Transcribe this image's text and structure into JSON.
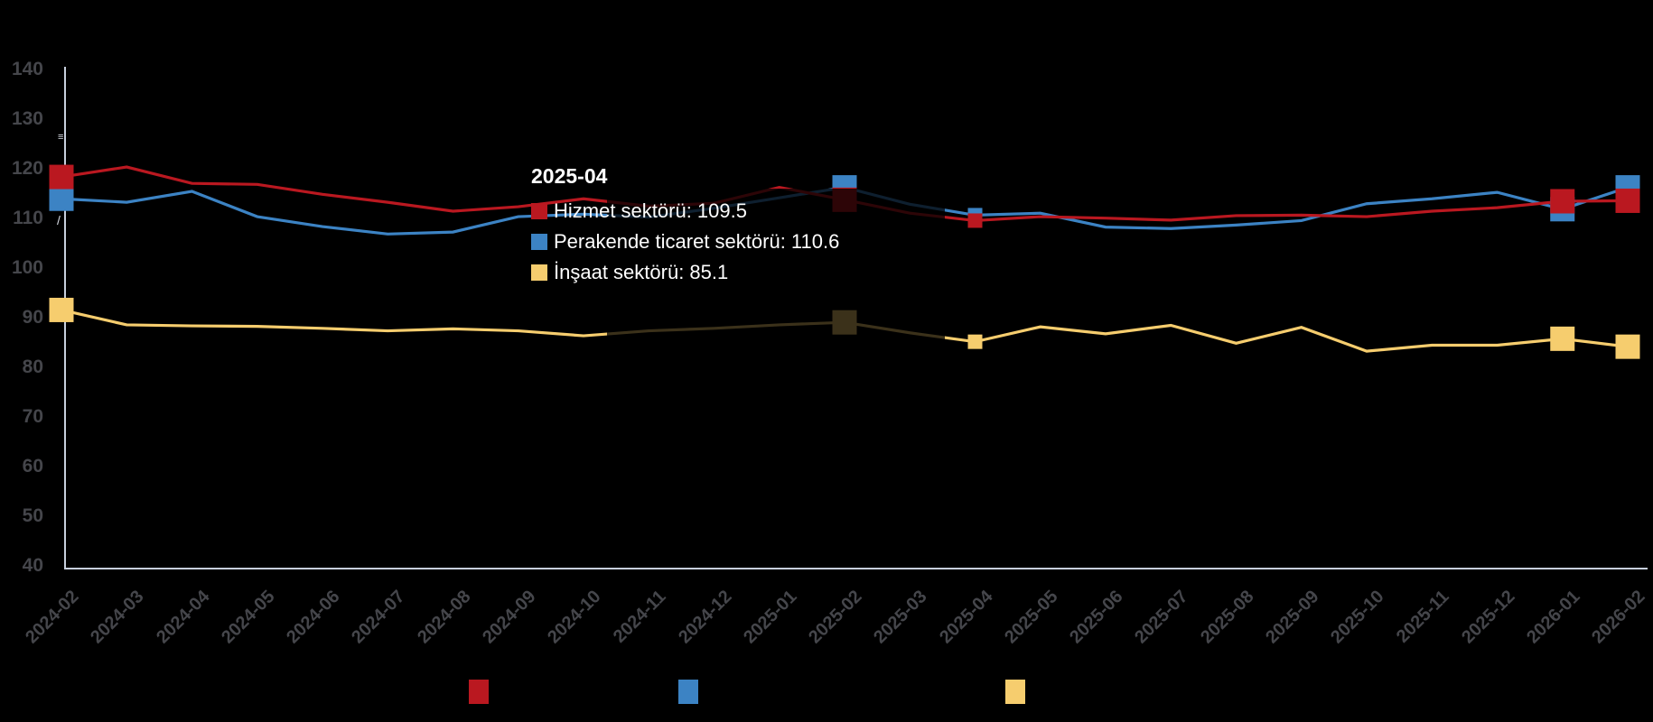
{
  "chart_data": {
    "type": "line",
    "title": "",
    "xlabel": "",
    "ylabel": "",
    "ylim": [
      40,
      140
    ],
    "yticks": [
      140,
      130,
      120,
      110,
      100,
      90,
      80,
      70,
      60,
      50,
      40
    ],
    "grid": false,
    "legend_position": "bottom",
    "background": "#000000",
    "axis_color": "#c7cfdd",
    "tick_label_color": "#45464b",
    "x": [
      "2024-02",
      "2024-03",
      "2024-04",
      "2024-05",
      "2024-06",
      "2024-07",
      "2024-08",
      "2024-09",
      "2024-10",
      "2024-11",
      "2024-12",
      "2025-01",
      "2025-02",
      "2025-03",
      "2025-04",
      "2025-05",
      "2025-06",
      "2025-07",
      "2025-08",
      "2025-09",
      "2025-10",
      "2025-11",
      "2025-12",
      "2026-01",
      "2026-02"
    ],
    "series": [
      {
        "name": "Hizmet sektörü",
        "color": "#ba1820",
        "values": [
          118.3,
          120.3,
          117.0,
          116.8,
          114.8,
          113.2,
          111.4,
          112.3,
          113.9,
          112.4,
          113.0,
          116.2,
          113.7,
          111.0,
          109.5,
          110.3,
          110.0,
          109.6,
          110.5,
          110.6,
          110.3,
          111.4,
          112.1,
          113.4,
          113.5
        ]
      },
      {
        "name": "Perakende ticaret sektörü",
        "color": "#3c83c4",
        "values": [
          113.9,
          113.2,
          115.4,
          110.3,
          108.3,
          106.8,
          107.2,
          110.3,
          110.8,
          110.2,
          112.0,
          114.1,
          116.2,
          112.8,
          110.6,
          111.0,
          108.2,
          107.9,
          108.6,
          109.5,
          112.9,
          113.9,
          115.2,
          111.8,
          116.2
        ]
      },
      {
        "name": "İnşaat sektörü",
        "color": "#f6cd6e",
        "values": [
          91.5,
          88.5,
          88.3,
          88.2,
          87.8,
          87.3,
          87.7,
          87.3,
          86.3,
          87.3,
          87.8,
          88.5,
          89.0,
          86.9,
          85.1,
          88.1,
          86.7,
          88.4,
          84.8,
          88.0,
          83.2,
          84.4,
          84.4,
          85.7,
          84.1
        ]
      }
    ],
    "marker_points": [
      {
        "month": "2024-02",
        "size": "large"
      },
      {
        "month": "2025-02",
        "size": "large"
      },
      {
        "month": "2025-04",
        "size": "small"
      },
      {
        "month": "2026-01",
        "size": "large"
      },
      {
        "month": "2026-02",
        "size": "large"
      }
    ]
  },
  "tooltip": {
    "title": "2025-04",
    "rows": [
      {
        "text": "Hizmet sektörü: 109.5",
        "color": "#ba1820"
      },
      {
        "text": "Perakende ticaret sektörü: 110.6",
        "color": "#3c83c4"
      },
      {
        "text": "İnşaat sektörü: 85.1",
        "color": "#f6cd6e"
      }
    ]
  }
}
